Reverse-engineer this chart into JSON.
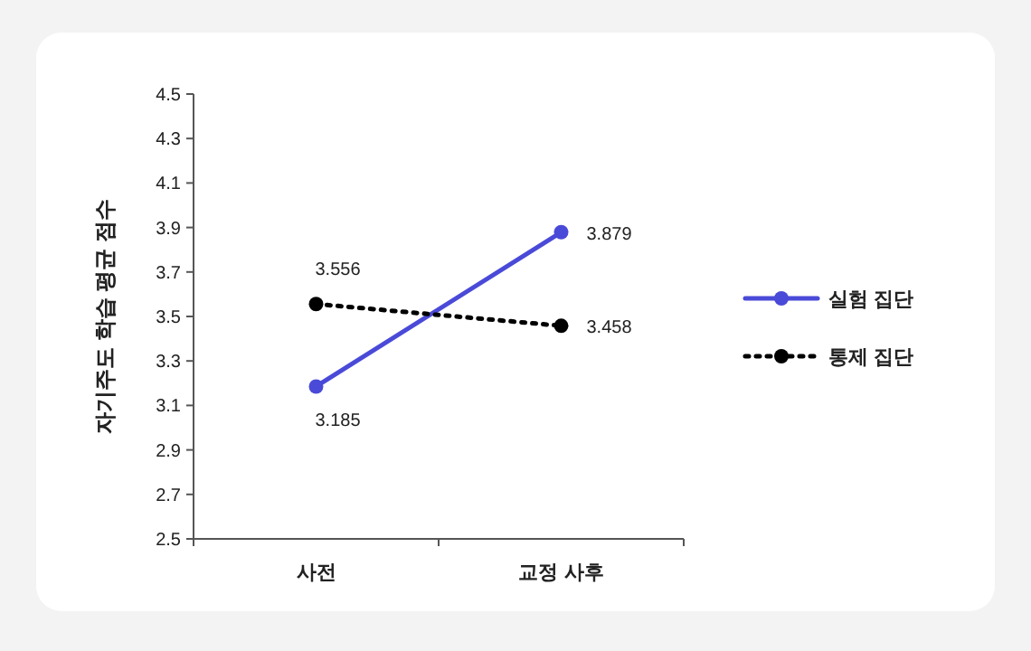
{
  "chart_data": {
    "type": "line",
    "ylabel": "자기주도 학습 평균 점수",
    "categories": [
      "사전",
      "교정 사후"
    ],
    "series": [
      {
        "name": "실험 집단",
        "color": "#4a4ad8",
        "values": [
          3.185,
          3.879
        ],
        "line_style": "solid"
      },
      {
        "name": "통제 집단",
        "color": "#000000",
        "values": [
          3.556,
          3.458
        ],
        "line_style": "dotted"
      }
    ],
    "ylim": [
      2.5,
      4.5
    ],
    "yticks": [
      2.5,
      2.7,
      2.9,
      3.1,
      3.3,
      3.5,
      3.7,
      3.9,
      4.1,
      4.3,
      4.5
    ],
    "data_labels": true,
    "marker": "circle",
    "legend": "right",
    "grid": false
  }
}
